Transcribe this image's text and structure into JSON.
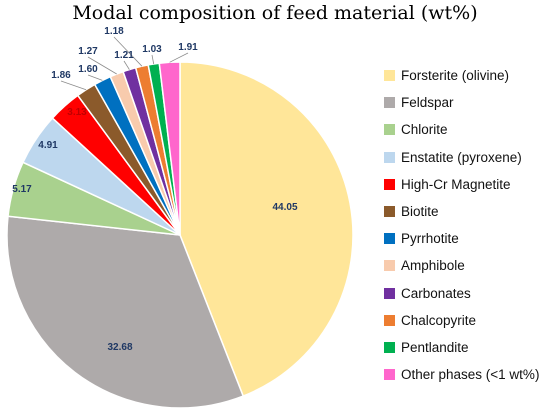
{
  "chart_data": {
    "type": "pie",
    "title": "Modal composition of feed material (wt%)",
    "legend_position": "right",
    "slices": [
      {
        "label": "Forsterite (olivine)",
        "value": 44.05,
        "value_label": "44.05",
        "color": "#FFE699"
      },
      {
        "label": "Feldspar",
        "value": 32.68,
        "value_label": "32.68",
        "color": "#AEAAAA"
      },
      {
        "label": "Chlorite",
        "value": 5.17,
        "value_label": "5.17",
        "color": "#A9D18E"
      },
      {
        "label": "Enstatite (pyroxene)",
        "value": 4.91,
        "value_label": "4.91",
        "color": "#BDD7EE"
      },
      {
        "label": "High-Cr Magnetite",
        "value": 3.13,
        "value_label": "3.13",
        "color": "#FF0000"
      },
      {
        "label": "Biotite",
        "value": 1.86,
        "value_label": "1.86",
        "color": "#8B5A2B"
      },
      {
        "label": "Pyrrhotite",
        "value": 1.6,
        "value_label": "1.60",
        "color": "#0070C0"
      },
      {
        "label": "Amphibole",
        "value": 1.27,
        "value_label": "1.27",
        "color": "#F8CBAD"
      },
      {
        "label": "Carbonates",
        "value": 1.21,
        "value_label": "1.21",
        "color": "#7030A0"
      },
      {
        "label": "Chalcopyrite",
        "value": 1.18,
        "value_label": "1.18",
        "color": "#ED7D31"
      },
      {
        "label": "Pentlandite",
        "value": 1.03,
        "value_label": "1.03",
        "color": "#00B050"
      },
      {
        "label": "Other phases (<1 wt%)",
        "value": 1.91,
        "value_label": "1.91",
        "color": "#FF66CC"
      }
    ]
  }
}
